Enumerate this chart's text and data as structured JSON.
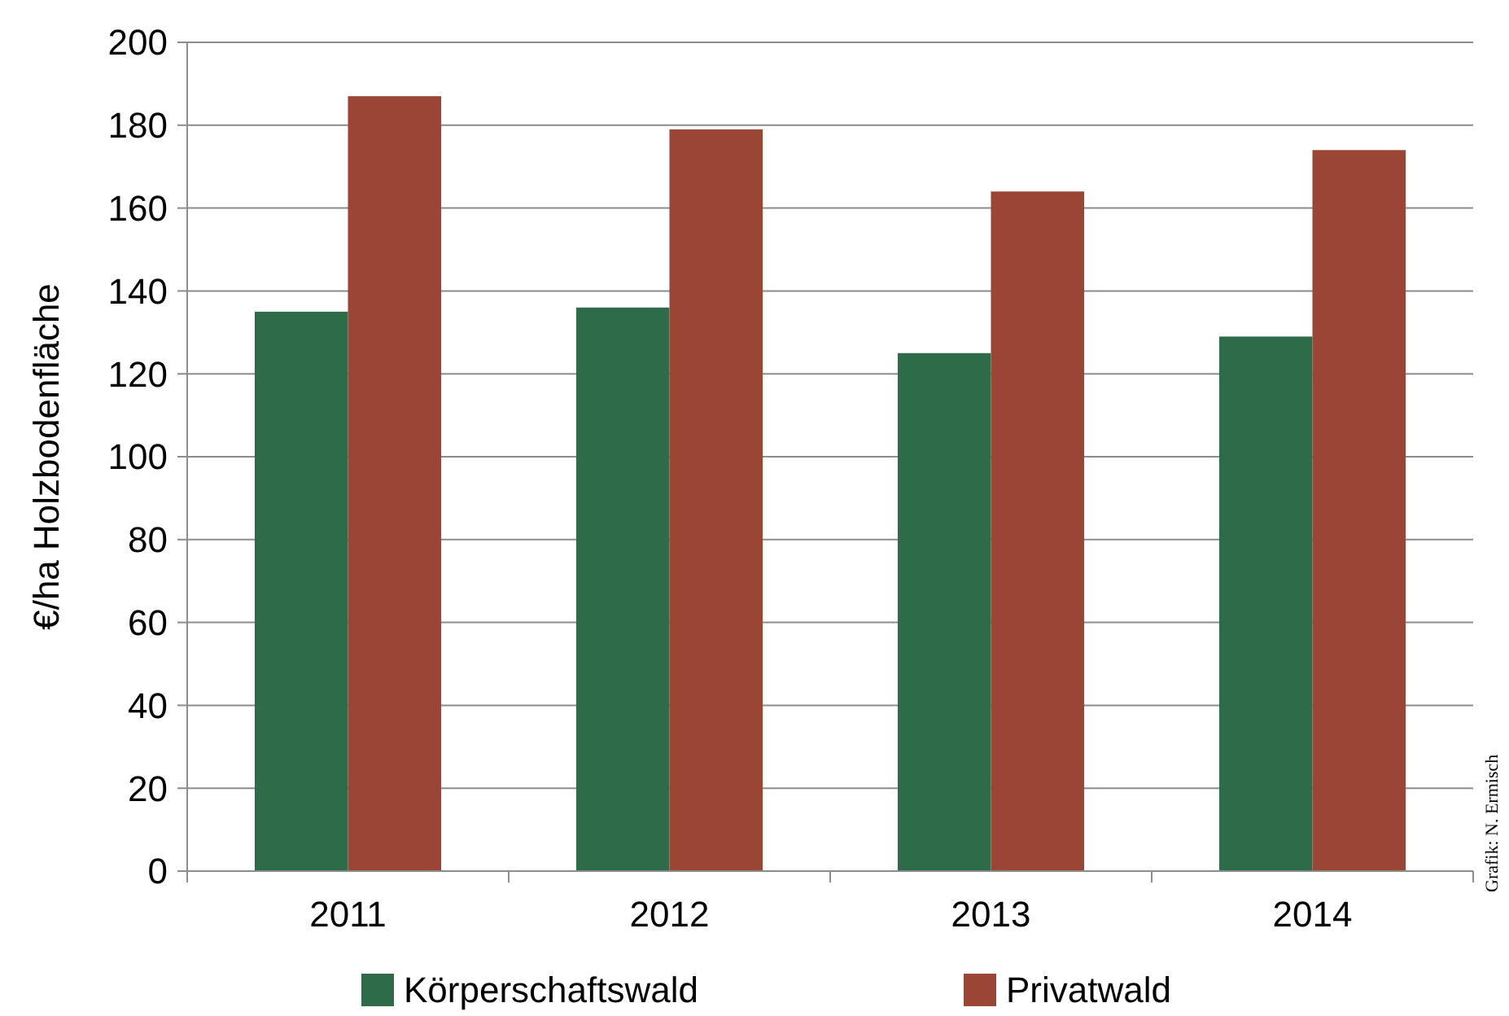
{
  "chart_data": {
    "type": "bar",
    "ylabel": "€/ha Holzbodenfläche",
    "categories": [
      "2011",
      "2012",
      "2013",
      "2014"
    ],
    "series": [
      {
        "name": "Körperschaftswald",
        "color": "#2e6b48",
        "values": [
          135,
          136,
          125,
          129
        ]
      },
      {
        "name": "Privatwald",
        "color": "#9b4535",
        "values": [
          187,
          179,
          164,
          174
        ]
      }
    ],
    "ylim": [
      0,
      200
    ],
    "yticks": [
      0,
      20,
      40,
      60,
      80,
      100,
      120,
      140,
      160,
      180,
      200
    ],
    "grid": "y",
    "legend": "bottom",
    "annotations": [
      "Grafik: N. Ermisch"
    ]
  }
}
